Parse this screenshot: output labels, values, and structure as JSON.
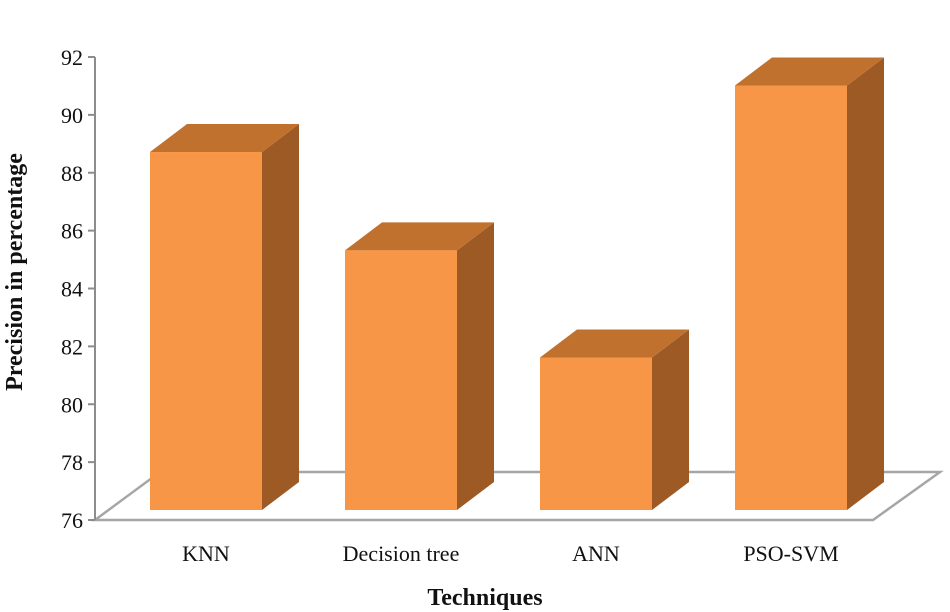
{
  "chart_data": {
    "type": "bar",
    "style": "3d",
    "categories": [
      "KNN",
      "Decision tree",
      "ANN",
      "PSO-SVM"
    ],
    "values": [
      89.2,
      85.8,
      82.1,
      91.5
    ],
    "xlabel": "Techniques",
    "ylabel": "Precision in percentage",
    "ylim": [
      76,
      92
    ],
    "yticks": [
      76,
      78,
      80,
      82,
      84,
      86,
      88,
      90,
      92
    ],
    "grid": false,
    "colors": {
      "front": "#F79646",
      "top": "#C0712D",
      "side": "#9E5A24",
      "floor_edge": "#A6A6A6",
      "axis": "#8C8C8C"
    }
  }
}
